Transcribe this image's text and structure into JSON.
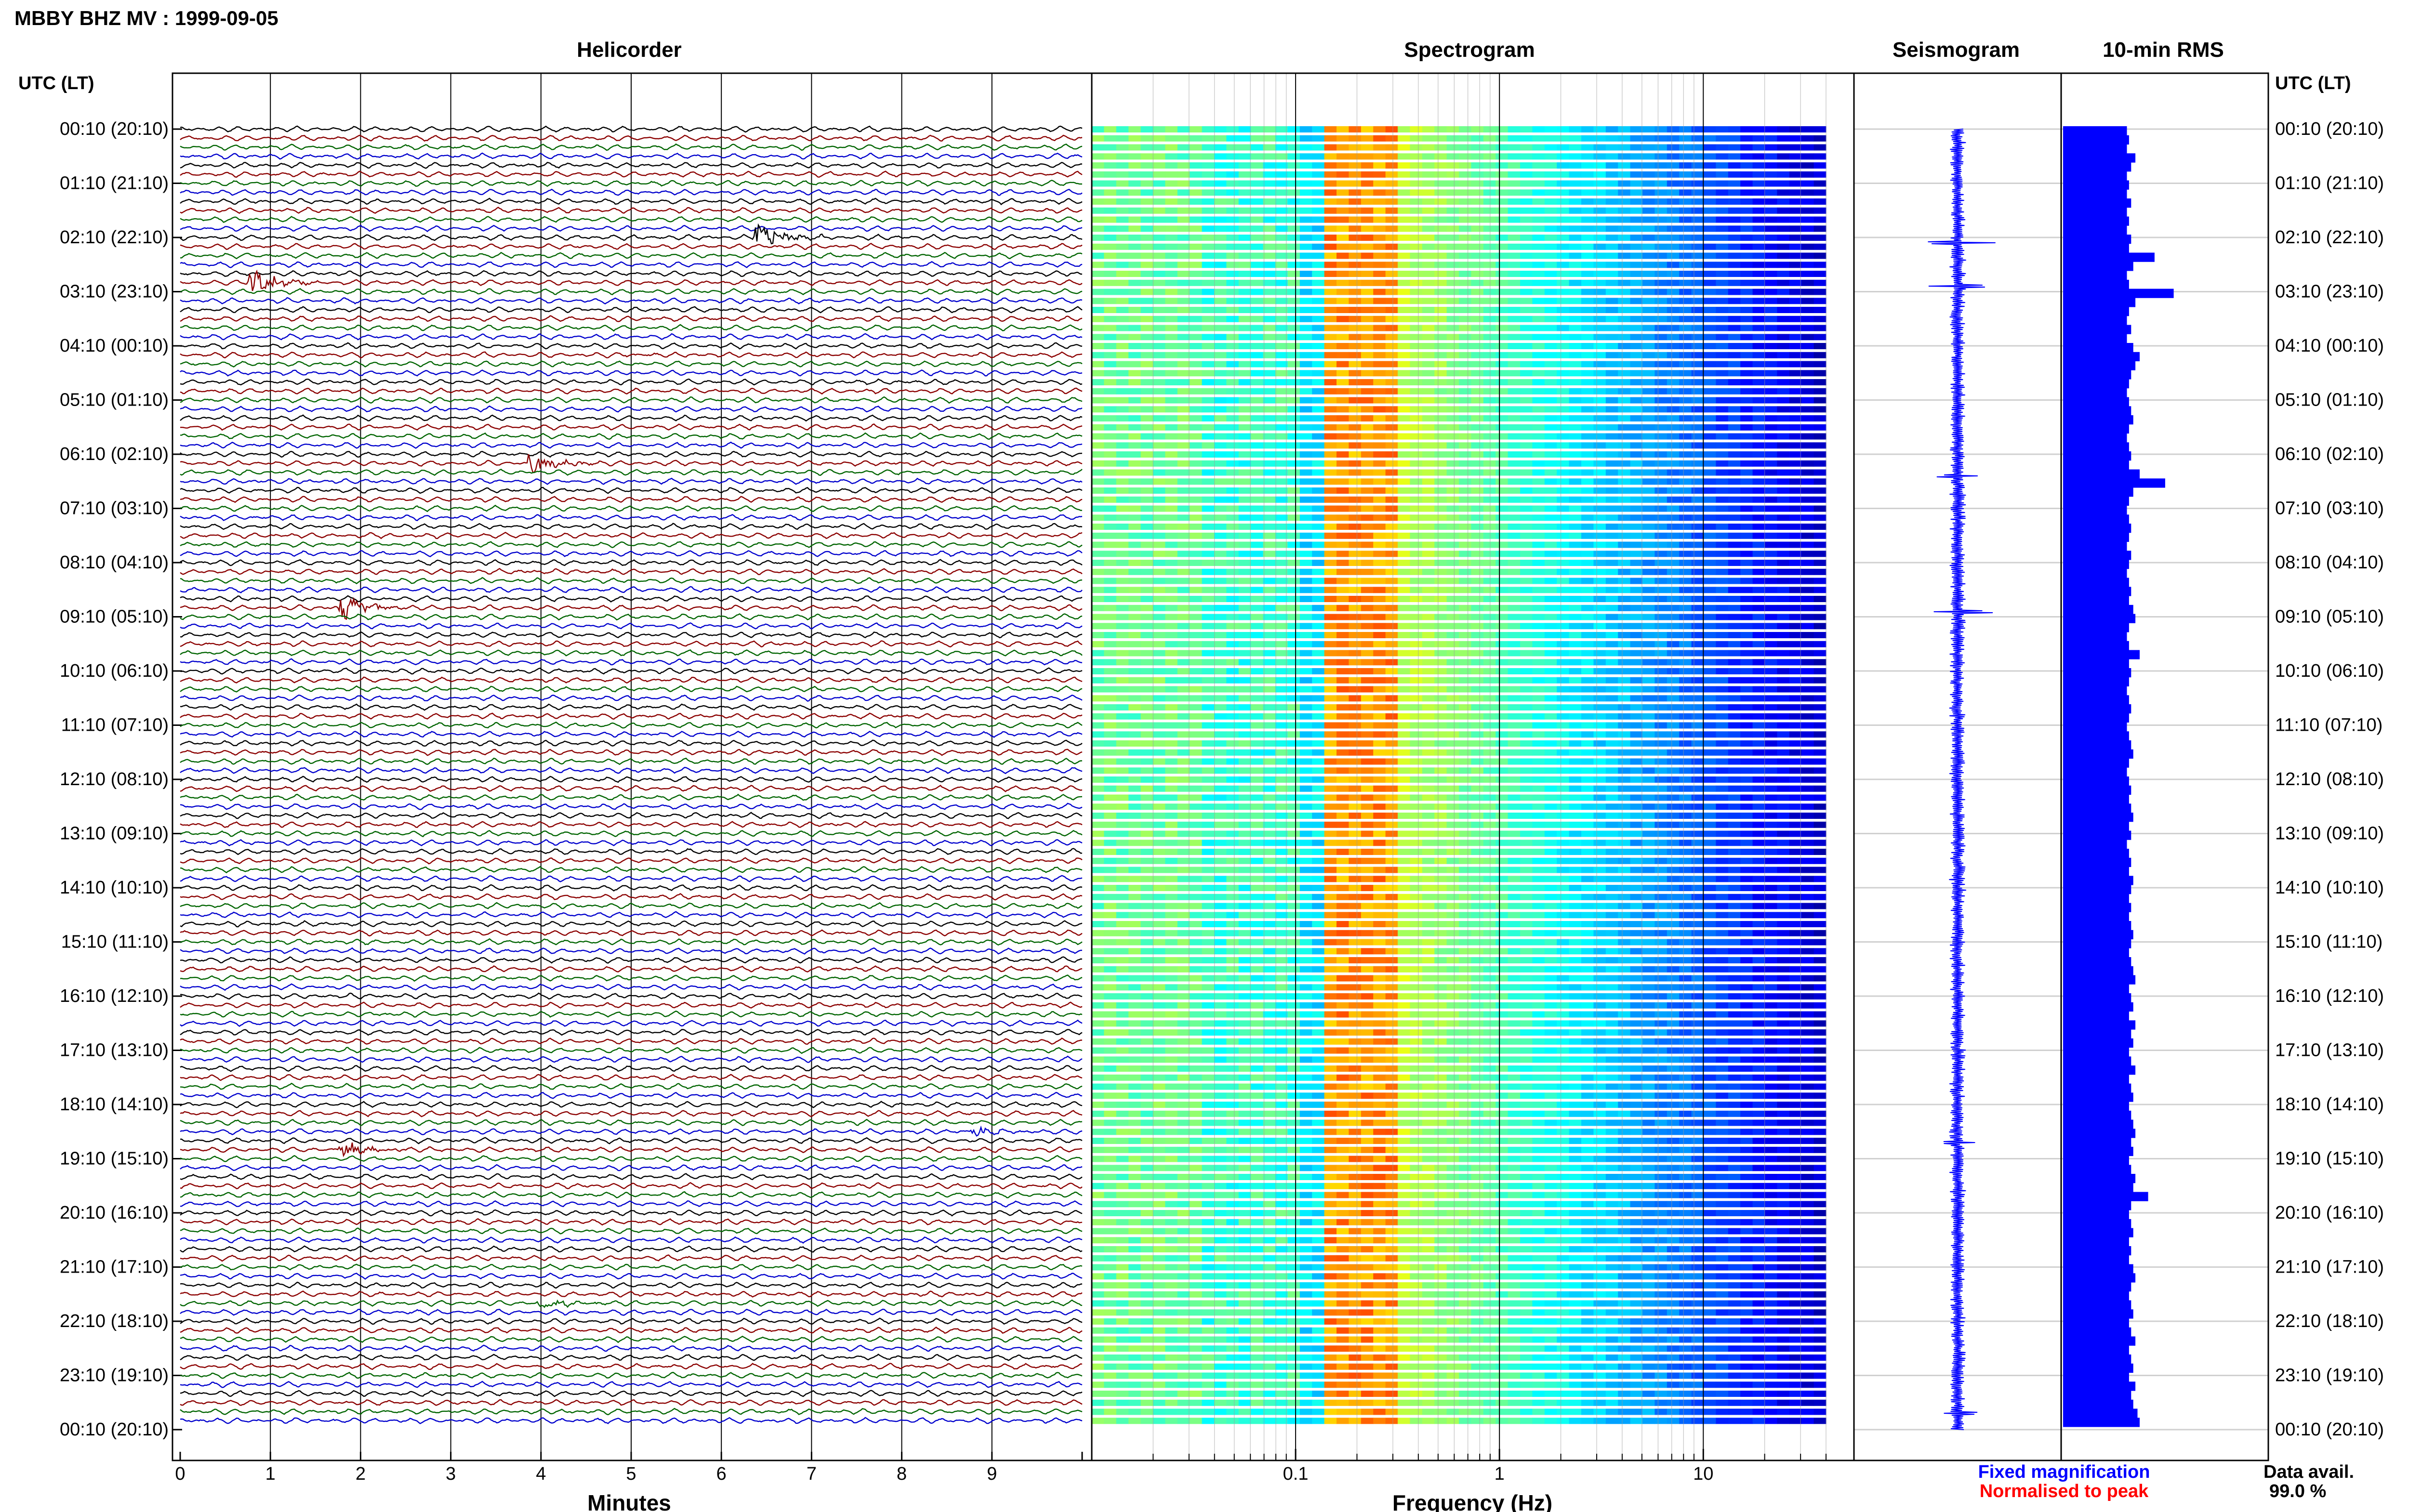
{
  "header": {
    "title": "MBBY BHZ MV : 1999-09-05",
    "utc_label": "UTC (LT)"
  },
  "panels": {
    "helicorder": "Helicorder",
    "spectrogram": "Spectrogram",
    "seismogram": "Seismogram",
    "rms": "10-min RMS"
  },
  "footer": {
    "minutes_label": "Minutes",
    "frequency_label": "Frequency (Hz)",
    "fixed_magnification": "Fixed magnification",
    "normalised": "Normalised to peak",
    "data_avail_label": "Data avail.",
    "data_avail_value": "99.0 %"
  },
  "colors": {
    "trace_cycle": [
      "#000000",
      "#8b0000",
      "#006400",
      "#0000cd"
    ],
    "rms_bar": "#0000ff",
    "fixed_text": "#0000ff",
    "normalised_text": "#ff0000",
    "spectrogram_colormap": "jet"
  },
  "chart_data": {
    "type": "heatmap",
    "rows_per_hour": 6,
    "row_count": 144,
    "time_labels": [
      "00:10 (20:10)",
      "01:10 (21:10)",
      "02:10 (22:10)",
      "03:10 (23:10)",
      "04:10 (00:10)",
      "05:10 (01:10)",
      "06:10 (02:10)",
      "07:10 (03:10)",
      "08:10 (04:10)",
      "09:10 (05:10)",
      "10:10 (06:10)",
      "11:10 (07:10)",
      "12:10 (08:10)",
      "13:10 (09:10)",
      "14:10 (10:10)",
      "15:10 (11:10)",
      "16:10 (12:10)",
      "17:10 (13:10)",
      "18:10 (14:10)",
      "19:10 (15:10)",
      "20:10 (16:10)",
      "21:10 (17:10)",
      "22:10 (18:10)",
      "23:10 (19:10)",
      "00:10 (20:10)"
    ],
    "helicorder": {
      "xlabel": "Minutes",
      "xlim": [
        0,
        10
      ],
      "xticks": [
        "0",
        "1",
        "2",
        "3",
        "4",
        "5",
        "6",
        "7",
        "8",
        "9"
      ],
      "events": [
        {
          "hour": 2.0,
          "minute": 6.4,
          "amplitude": 1.0
        },
        {
          "hour": 2.8,
          "minute": 0.8,
          "amplitude": 1.0
        },
        {
          "hour": 6.2,
          "minute": 3.9,
          "amplitude": 0.7
        },
        {
          "hour": 8.8,
          "minute": 1.8,
          "amplitude": 0.9
        },
        {
          "hour": 18.8,
          "minute": 1.8,
          "amplitude": 0.5
        },
        {
          "hour": 18.5,
          "minute": 8.8,
          "amplitude": 0.4
        },
        {
          "hour": 21.7,
          "minute": 4.0,
          "amplitude": 0.4
        },
        {
          "hour": 24.0,
          "minute": 1.3,
          "amplitude": 0.6
        }
      ]
    },
    "spectrogram": {
      "xlabel": "Frequency (Hz)",
      "xscale": "log",
      "xlim": [
        0.01,
        40
      ],
      "xticks": [
        "0.1",
        "1",
        "10"
      ],
      "peak_band_hz": [
        0.13,
        0.3
      ],
      "colormap": "jet"
    },
    "seismogram": {
      "spikes": [
        {
          "hour": 2.1,
          "amplitude": 1.0
        },
        {
          "hour": 2.9,
          "amplitude": 0.8
        },
        {
          "hour": 6.4,
          "amplitude": 0.5
        },
        {
          "hour": 8.9,
          "amplitude": 0.8
        },
        {
          "hour": 18.7,
          "amplitude": 0.45
        },
        {
          "hour": 23.7,
          "amplitude": 0.4
        }
      ]
    },
    "rms": {
      "values": [
        0.3,
        0.31,
        0.3,
        0.34,
        0.32,
        0.3,
        0.31,
        0.3,
        0.32,
        0.3,
        0.31,
        0.3,
        0.32,
        0.31,
        0.43,
        0.33,
        0.3,
        0.31,
        0.52,
        0.34,
        0.31,
        0.3,
        0.32,
        0.3,
        0.33,
        0.36,
        0.34,
        0.32,
        0.31,
        0.3,
        0.31,
        0.32,
        0.33,
        0.31,
        0.3,
        0.31,
        0.32,
        0.31,
        0.36,
        0.48,
        0.33,
        0.31,
        0.3,
        0.31,
        0.32,
        0.31,
        0.3,
        0.32,
        0.31,
        0.3,
        0.31,
        0.32,
        0.31,
        0.33,
        0.34,
        0.31,
        0.3,
        0.31,
        0.36,
        0.31,
        0.32,
        0.31,
        0.3,
        0.31,
        0.32,
        0.31,
        0.3,
        0.31,
        0.32,
        0.33,
        0.31,
        0.3,
        0.31,
        0.32,
        0.31,
        0.32,
        0.33,
        0.31,
        0.32,
        0.3,
        0.31,
        0.32,
        0.31,
        0.33,
        0.32,
        0.31,
        0.32,
        0.31,
        0.32,
        0.33,
        0.32,
        0.31,
        0.32,
        0.33,
        0.34,
        0.31,
        0.32,
        0.33,
        0.31,
        0.34,
        0.32,
        0.33,
        0.31,
        0.32,
        0.34,
        0.31,
        0.32,
        0.33,
        0.31,
        0.32,
        0.33,
        0.34,
        0.32,
        0.33,
        0.31,
        0.32,
        0.34,
        0.33,
        0.4,
        0.32,
        0.31,
        0.32,
        0.33,
        0.31,
        0.32,
        0.31,
        0.33,
        0.34,
        0.32,
        0.31,
        0.32,
        0.33,
        0.31,
        0.32,
        0.34,
        0.31,
        0.32,
        0.33,
        0.31,
        0.34,
        0.32,
        0.33,
        0.35,
        0.36
      ]
    }
  }
}
